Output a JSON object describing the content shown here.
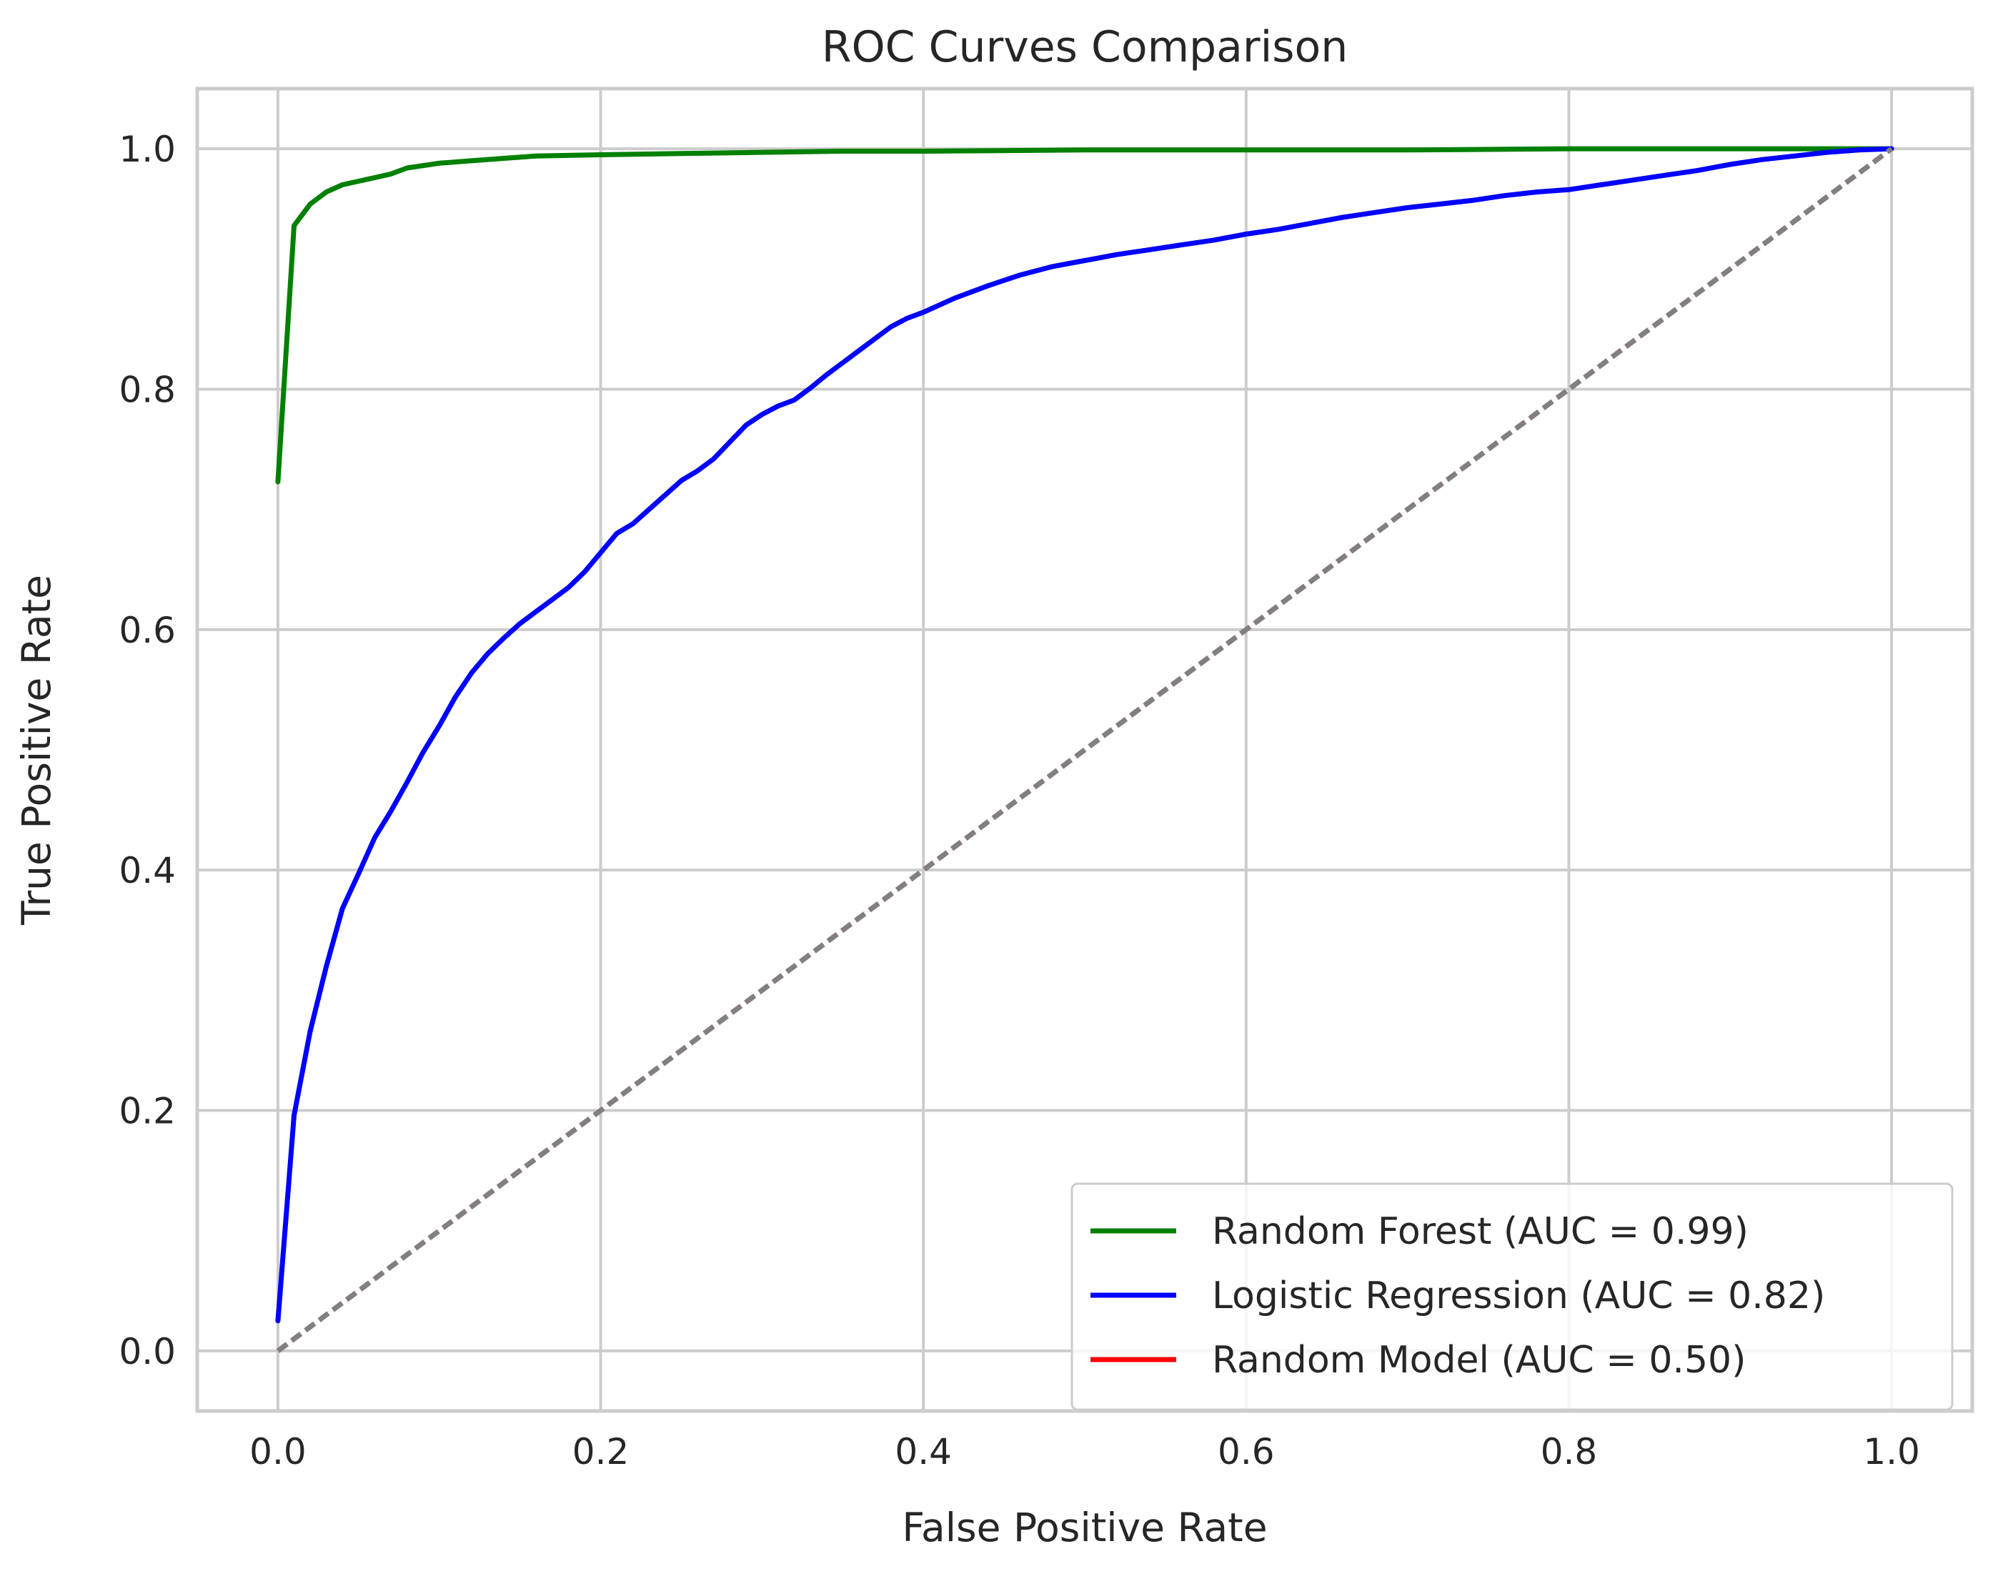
{
  "chart_data": {
    "type": "line",
    "title": "ROC Curves Comparison",
    "xlabel": "False Positive Rate",
    "ylabel": "True Positive Rate",
    "xlim": [
      -0.05,
      1.05
    ],
    "ylim": [
      -0.05,
      1.05
    ],
    "xticks": [
      0.0,
      0.2,
      0.4,
      0.6,
      0.8,
      1.0
    ],
    "xtick_labels": [
      "0.0",
      "0.2",
      "0.4",
      "0.6",
      "0.8",
      "1.0"
    ],
    "yticks": [
      0.0,
      0.2,
      0.4,
      0.6,
      0.8,
      1.0
    ],
    "ytick_labels": [
      "0.0",
      "0.2",
      "0.4",
      "0.6",
      "0.8",
      "1.0"
    ],
    "grid": true,
    "legend_position": "lower right",
    "series": [
      {
        "name": "Random Forest (AUC = 0.99)",
        "color": "#008000",
        "style": "solid",
        "x": [
          0.0,
          0.01,
          0.02,
          0.03,
          0.04,
          0.05,
          0.06,
          0.07,
          0.08,
          0.1,
          0.12,
          0.14,
          0.16,
          0.2,
          0.25,
          0.3,
          0.35,
          0.4,
          0.5,
          0.6,
          0.7,
          0.8,
          0.9,
          1.0
        ],
        "y": [
          0.723,
          0.936,
          0.954,
          0.964,
          0.97,
          0.973,
          0.976,
          0.979,
          0.984,
          0.988,
          0.99,
          0.992,
          0.994,
          0.995,
          0.996,
          0.997,
          0.998,
          0.998,
          0.999,
          0.999,
          0.999,
          1.0,
          1.0,
          1.0
        ]
      },
      {
        "name": "Logistic Regression (AUC = 0.82)",
        "color": "#0000ff",
        "style": "solid",
        "x": [
          0.0,
          0.01,
          0.02,
          0.03,
          0.04,
          0.05,
          0.06,
          0.07,
          0.08,
          0.09,
          0.1,
          0.11,
          0.12,
          0.13,
          0.14,
          0.15,
          0.16,
          0.17,
          0.18,
          0.19,
          0.2,
          0.21,
          0.22,
          0.23,
          0.24,
          0.25,
          0.26,
          0.27,
          0.28,
          0.29,
          0.3,
          0.31,
          0.32,
          0.33,
          0.34,
          0.35,
          0.36,
          0.37,
          0.38,
          0.39,
          0.4,
          0.42,
          0.44,
          0.46,
          0.48,
          0.5,
          0.52,
          0.54,
          0.56,
          0.58,
          0.6,
          0.62,
          0.64,
          0.66,
          0.68,
          0.7,
          0.72,
          0.74,
          0.76,
          0.78,
          0.8,
          0.82,
          0.84,
          0.86,
          0.88,
          0.9,
          0.92,
          0.94,
          0.96,
          0.98,
          1.0
        ],
        "y": [
          0.025,
          0.196,
          0.266,
          0.32,
          0.368,
          0.397,
          0.427,
          0.449,
          0.473,
          0.498,
          0.52,
          0.544,
          0.564,
          0.58,
          0.593,
          0.605,
          0.615,
          0.625,
          0.635,
          0.648,
          0.664,
          0.68,
          0.688,
          0.7,
          0.712,
          0.724,
          0.732,
          0.742,
          0.756,
          0.77,
          0.779,
          0.786,
          0.791,
          0.801,
          0.812,
          0.822,
          0.832,
          0.842,
          0.852,
          0.859,
          0.864,
          0.876,
          0.886,
          0.895,
          0.902,
          0.907,
          0.912,
          0.916,
          0.92,
          0.924,
          0.929,
          0.933,
          0.938,
          0.943,
          0.947,
          0.951,
          0.954,
          0.957,
          0.961,
          0.964,
          0.966,
          0.97,
          0.974,
          0.978,
          0.982,
          0.987,
          0.991,
          0.994,
          0.997,
          0.999,
          1.0
        ]
      },
      {
        "name": "Random Model (AUC = 0.50)",
        "color": "#ff0000",
        "style": "dashed",
        "x": [
          0.0,
          1.0
        ],
        "y": [
          0.0,
          1.0
        ]
      },
      {
        "color": "#808080",
        "style": "dashed",
        "x": [
          0.0,
          1.0
        ],
        "y": [
          0.0,
          1.0
        ]
      }
    ]
  }
}
